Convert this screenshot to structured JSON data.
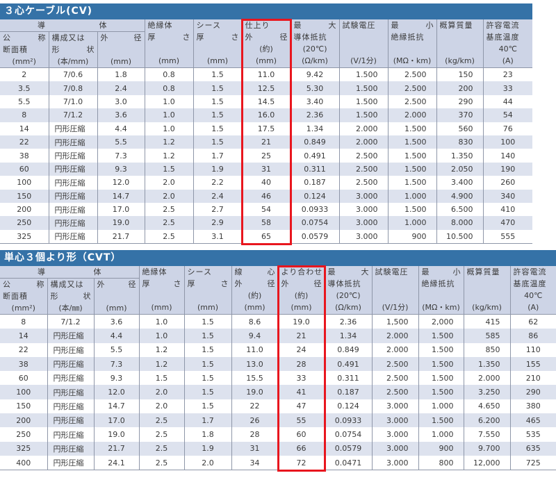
{
  "accent_color": "#3572a7",
  "highlight_color": "#e8161e",
  "tables": [
    {
      "title": "３心ケーブル(CV)",
      "group_header": "導　体",
      "highlight_column": 5,
      "columns": [
        {
          "lines": [
            "公　称",
            "断面積",
            "(mm²)"
          ]
        },
        {
          "lines": [
            "構成又は",
            "形　状",
            "(本/mm)"
          ]
        },
        {
          "lines": [
            "外　径",
            "",
            "(mm)"
          ]
        },
        {
          "lines": [
            "絶縁体",
            "厚　さ",
            "",
            "(mm)"
          ]
        },
        {
          "lines": [
            "シース",
            "厚　さ",
            "",
            "(mm)"
          ]
        },
        {
          "lines": [
            "仕上り",
            "外　径",
            "(約)",
            "(mm)"
          ]
        },
        {
          "lines": [
            "最　大",
            "導体抵抗",
            "(20℃)",
            "(Ω/km)"
          ]
        },
        {
          "lines": [
            "試験電圧",
            "",
            "",
            "(V/1分)"
          ]
        },
        {
          "lines": [
            "最　小",
            "絶縁抵抗",
            "",
            "(MΩ・km)"
          ]
        },
        {
          "lines": [
            "概算質量",
            "",
            "",
            "(kg/km)"
          ]
        },
        {
          "lines": [
            "許容電流",
            "基底温度",
            "40℃",
            "(A)"
          ]
        }
      ],
      "rows": [
        [
          "2",
          "7/0.6",
          "1.8",
          "0.8",
          "1.5",
          "11.0",
          "9.42",
          "1.500",
          "2.500",
          "150",
          "23"
        ],
        [
          "3.5",
          "7/0.8",
          "2.4",
          "0.8",
          "1.5",
          "12.5",
          "5.30",
          "1.500",
          "2.500",
          "200",
          "33"
        ],
        [
          "5.5",
          "7/1.0",
          "3.0",
          "1.0",
          "1.5",
          "14.5",
          "3.40",
          "1.500",
          "2.500",
          "290",
          "44"
        ],
        [
          "8",
          "7/1.2",
          "3.6",
          "1.0",
          "1.5",
          "16.0",
          "2.36",
          "1.500",
          "2.000",
          "370",
          "54"
        ],
        [
          "14",
          "円形圧縮",
          "4.4",
          "1.0",
          "1.5",
          "17.5",
          "1.34",
          "2.000",
          "1.500",
          "560",
          "76"
        ],
        [
          "22",
          "円形圧縮",
          "5.5",
          "1.2",
          "1.5",
          "21",
          "0.849",
          "2.000",
          "1.500",
          "830",
          "100"
        ],
        [
          "38",
          "円形圧縮",
          "7.3",
          "1.2",
          "1.7",
          "25",
          "0.491",
          "2.500",
          "1.500",
          "1.350",
          "140"
        ],
        [
          "60",
          "円形圧縮",
          "9.3",
          "1.5",
          "1.9",
          "31",
          "0.311",
          "2.500",
          "1.500",
          "2.050",
          "190"
        ],
        [
          "100",
          "円形圧縮",
          "12.0",
          "2.0",
          "2.2",
          "40",
          "0.187",
          "2.500",
          "1.500",
          "3.400",
          "260"
        ],
        [
          "150",
          "円形圧縮",
          "14.7",
          "2.0",
          "2.4",
          "46",
          "0.124",
          "3.000",
          "1.000",
          "4.900",
          "340"
        ],
        [
          "200",
          "円形圧縮",
          "17.0",
          "2.5",
          "2.7",
          "54",
          "0.0933",
          "3.000",
          "1.500",
          "6.500",
          "410"
        ],
        [
          "250",
          "円形圧縮",
          "19.0",
          "2.5",
          "2.9",
          "58",
          "0.0754",
          "3.000",
          "1.000",
          "8.000",
          "470"
        ],
        [
          "325",
          "円形圧縮",
          "21.7",
          "2.5",
          "3.1",
          "65",
          "0.0579",
          "3.000",
          "900",
          "10.500",
          "555"
        ]
      ]
    },
    {
      "title": "単心３個より形（CVT）",
      "group_header": "導　体",
      "highlight_column": 6,
      "columns": [
        {
          "lines": [
            "公　称",
            "断面積",
            "(mm²)"
          ]
        },
        {
          "lines": [
            "構成又は",
            "形　状",
            "(本/㎜)"
          ]
        },
        {
          "lines": [
            "外　径",
            "",
            "(mm)"
          ]
        },
        {
          "lines": [
            "絶縁体",
            "厚　さ",
            "",
            "(mm)"
          ]
        },
        {
          "lines": [
            "シース",
            "厚　さ",
            "",
            "(mm)"
          ]
        },
        {
          "lines": [
            "線　心",
            "外　径",
            "(約)",
            "(mm)"
          ]
        },
        {
          "lines": [
            "より合わせ",
            "外　径",
            "(約)",
            "(mm)"
          ]
        },
        {
          "lines": [
            "最　大",
            "導体抵抗",
            "(20℃)",
            "(Ω/km)"
          ]
        },
        {
          "lines": [
            "試験電圧",
            "",
            "",
            "(V/1分)"
          ]
        },
        {
          "lines": [
            "最　小",
            "絶縁抵抗",
            "",
            "(MΩ・km)"
          ]
        },
        {
          "lines": [
            "概算質量",
            "",
            "",
            "(kg/km)"
          ]
        },
        {
          "lines": [
            "許容電流",
            "基底温度",
            "40℃",
            "(A)"
          ]
        }
      ],
      "rows": [
        [
          "8",
          "7/1.2",
          "3.6",
          "1.0",
          "1.5",
          "8.6",
          "19.0",
          "2.36",
          "1,500",
          "2,000",
          "415",
          "62"
        ],
        [
          "14",
          "円形圧縮",
          "4.4",
          "1.0",
          "1.5",
          "9.4",
          "21",
          "1.34",
          "2.000",
          "1.500",
          "585",
          "86"
        ],
        [
          "22",
          "円形圧縮",
          "5.5",
          "1.2",
          "1.5",
          "11.0",
          "24",
          "0.849",
          "2.000",
          "1.500",
          "850",
          "110"
        ],
        [
          "38",
          "円形圧縮",
          "7.3",
          "1.2",
          "1.5",
          "13.0",
          "28",
          "0.491",
          "2.500",
          "1.500",
          "1.350",
          "155"
        ],
        [
          "60",
          "円形圧縮",
          "9.3",
          "1.5",
          "1.5",
          "15.5",
          "33",
          "0.311",
          "2.500",
          "1.500",
          "2.000",
          "210"
        ],
        [
          "100",
          "円形圧縮",
          "12.0",
          "2.0",
          "1.5",
          "19.0",
          "41",
          "0.187",
          "2.500",
          "1.500",
          "3.250",
          "290"
        ],
        [
          "150",
          "円形圧縮",
          "14.7",
          "2.0",
          "1.5",
          "22",
          "47",
          "0.124",
          "3.000",
          "1.000",
          "4.650",
          "380"
        ],
        [
          "200",
          "円形圧縮",
          "17.0",
          "2.5",
          "1.7",
          "26",
          "55",
          "0.0933",
          "3.000",
          "1.500",
          "6.200",
          "465"
        ],
        [
          "250",
          "円形圧縮",
          "19.0",
          "2.5",
          "1.8",
          "28",
          "60",
          "0.0754",
          "3.000",
          "1.000",
          "7.550",
          "535"
        ],
        [
          "325",
          "円形圧縮",
          "21.7",
          "2.5",
          "1.9",
          "31",
          "66",
          "0.0579",
          "3.000",
          "900",
          "9.700",
          "635"
        ],
        [
          "400",
          "円形圧縮",
          "24.1",
          "2.5",
          "2.0",
          "34",
          "72",
          "0.0471",
          "3.000",
          "800",
          "12,000",
          "725"
        ]
      ]
    }
  ]
}
